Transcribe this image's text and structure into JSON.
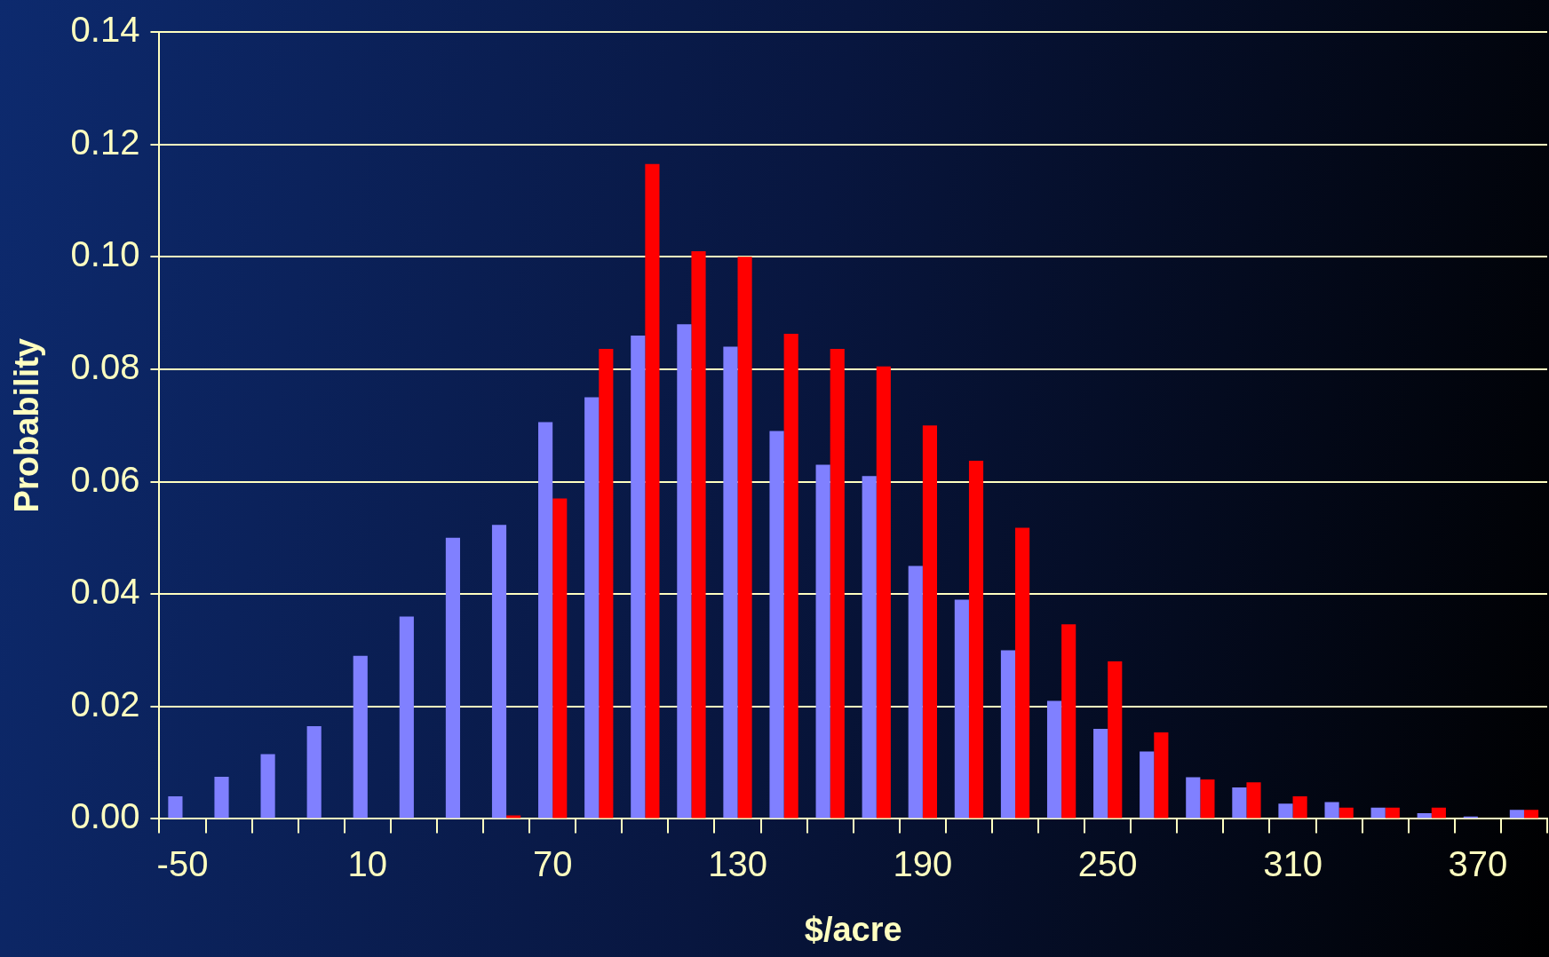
{
  "chart_data": {
    "type": "bar",
    "xlabel": "$/acre",
    "ylabel": "Probability",
    "categories": [
      "-50",
      null,
      null,
      null,
      "10",
      null,
      null,
      null,
      "70",
      null,
      null,
      null,
      "130",
      null,
      null,
      null,
      "190",
      null,
      null,
      null,
      "250",
      null,
      null,
      null,
      "310",
      null,
      null,
      null,
      "370",
      null
    ],
    "series": [
      {
        "color": "#8080ff",
        "values": [
          0.004,
          0.0075,
          0.0115,
          0.0165,
          0.029,
          0.036,
          0.05,
          0.0523,
          0.0706,
          0.075,
          0.086,
          0.088,
          0.084,
          0.069,
          0.063,
          0.061,
          0.045,
          0.039,
          0.03,
          0.021,
          0.016,
          0.012,
          0.0074,
          0.0056,
          0.0027,
          0.003,
          0.002,
          0.001,
          0.0004,
          0.0016
        ]
      },
      {
        "color": "#ff0000",
        "values": [
          null,
          null,
          null,
          null,
          null,
          null,
          null,
          0.0006,
          0.057,
          0.0836,
          0.1165,
          0.101,
          0.1,
          0.0863,
          0.0836,
          0.0805,
          0.07,
          0.0637,
          0.0518,
          0.0346,
          0.028,
          0.0154,
          0.007,
          0.0065,
          0.004,
          0.002,
          0.002,
          0.002,
          null,
          0.0016
        ]
      }
    ],
    "ylim": [
      0,
      0.14
    ],
    "yticks": [
      {
        "value": 0,
        "label": "0.00"
      },
      0.02,
      0.04,
      0.06,
      0.08,
      {
        "value": 0.1,
        "label": "0.10"
      },
      0.12,
      0.14
    ],
    "grid": "y",
    "legend": false
  }
}
